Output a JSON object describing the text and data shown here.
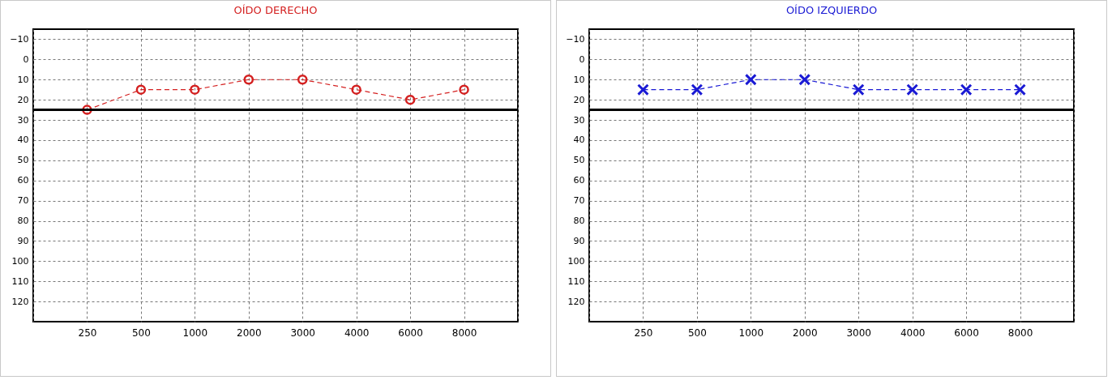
{
  "chart_data": [
    {
      "type": "line",
      "title": "OÍDO DERECHO",
      "categories": [
        null,
        "250",
        "500",
        "1000",
        "2000",
        "3000",
        "4000",
        "6000",
        "8000",
        null
      ],
      "series": [
        {
          "color": "#d42020",
          "values": [
            null,
            25,
            15,
            15,
            10,
            10,
            15,
            20,
            15,
            null
          ]
        }
      ],
      "ylim": [
        130,
        -15
      ],
      "yticks": [
        -10,
        0,
        10,
        20,
        30,
        40,
        50,
        60,
        70,
        80,
        90,
        100,
        110,
        120
      ],
      "grid": true,
      "marker": "circle",
      "line_style": "dashed",
      "ref_lines": [
        {
          "axis": "y",
          "value": 25,
          "color": "#000000"
        }
      ]
    },
    {
      "type": "line",
      "title": "OÍDO IZQUIERDO",
      "categories": [
        null,
        "250",
        "500",
        "1000",
        "2000",
        "3000",
        "4000",
        "6000",
        "8000",
        null
      ],
      "series": [
        {
          "color": "#1a1ad4",
          "values": [
            null,
            15,
            15,
            10,
            10,
            15,
            15,
            15,
            15,
            null
          ]
        }
      ],
      "ylim": [
        130,
        -15
      ],
      "yticks": [
        -10,
        0,
        10,
        20,
        30,
        40,
        50,
        60,
        70,
        80,
        90,
        100,
        110,
        120
      ],
      "grid": true,
      "marker": "cross",
      "line_style": "dashed",
      "ref_lines": [
        {
          "axis": "y",
          "value": 25,
          "color": "#000000"
        }
      ]
    }
  ]
}
